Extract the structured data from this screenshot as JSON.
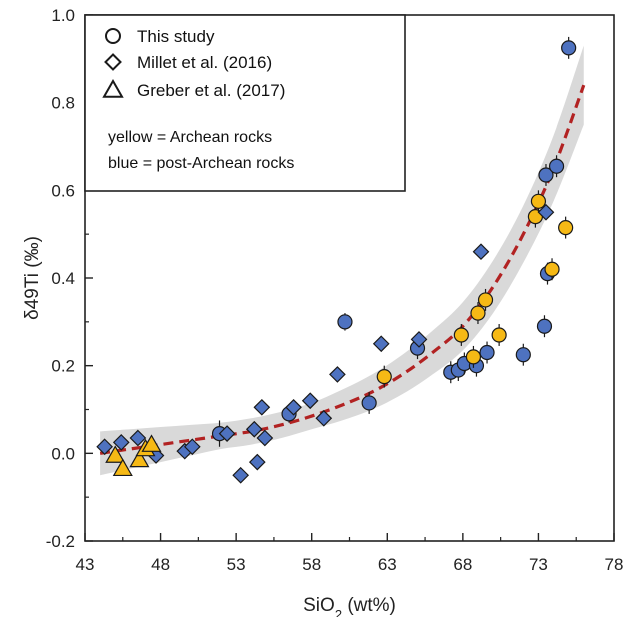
{
  "chart_data": {
    "type": "scatter",
    "xlabel_main": "SiO",
    "xlabel_sub": "2",
    "xlabel_rest": " (wt%)",
    "ylabel": "δ49Ti (‰)",
    "xlim": [
      43,
      78
    ],
    "ylim": [
      -0.2,
      1.0
    ],
    "x_ticks": [
      "43",
      "48",
      "53",
      "58",
      "63",
      "68",
      "73",
      "78"
    ],
    "y_ticks": [
      "-0.2",
      "0.0",
      "0.2",
      "0.4",
      "0.6",
      "0.8",
      "1.0"
    ],
    "legend": {
      "entries": [
        {
          "marker": "circle",
          "label": "This study"
        },
        {
          "marker": "diamond",
          "label": "Millet et al. (2016)"
        },
        {
          "marker": "triangle",
          "label": "Greber et al. (2017)"
        }
      ],
      "note_yellow": "yellow = Archean rocks",
      "note_blue": "blue = post-Archean rocks",
      "position": "top-left"
    },
    "colors": {
      "archean": "#f6b915",
      "post_archean": "#4e72c0",
      "trend": "#b22222",
      "band": "#d9d9d9"
    },
    "trend_curve": {
      "style": "dashed",
      "x": [
        44,
        46,
        48,
        50,
        52,
        54,
        56,
        58,
        60,
        62,
        64,
        66,
        68,
        70,
        72,
        74,
        76
      ],
      "y": [
        0.0,
        0.01,
        0.02,
        0.03,
        0.04,
        0.05,
        0.065,
        0.085,
        0.11,
        0.14,
        0.18,
        0.23,
        0.29,
        0.38,
        0.5,
        0.65,
        0.84
      ],
      "band_half_width": [
        0.05,
        0.045,
        0.04,
        0.035,
        0.03,
        0.03,
        0.03,
        0.03,
        0.035,
        0.04,
        0.045,
        0.05,
        0.055,
        0.06,
        0.065,
        0.075,
        0.09
      ]
    },
    "series": [
      {
        "marker": "circle",
        "color": "post_archean",
        "points": [
          {
            "x": 51.9,
            "y": 0.045,
            "err": 0.03
          },
          {
            "x": 56.5,
            "y": 0.09,
            "err": 0.02
          },
          {
            "x": 60.2,
            "y": 0.3,
            "err": 0.02
          },
          {
            "x": 61.8,
            "y": 0.115,
            "err": 0.025
          },
          {
            "x": 65.0,
            "y": 0.24,
            "err": 0.025
          },
          {
            "x": 67.2,
            "y": 0.185,
            "err": 0.025
          },
          {
            "x": 67.7,
            "y": 0.19,
            "err": 0.025
          },
          {
            "x": 68.1,
            "y": 0.205,
            "err": 0.025
          },
          {
            "x": 68.9,
            "y": 0.2,
            "err": 0.025
          },
          {
            "x": 69.6,
            "y": 0.23,
            "err": 0.025
          },
          {
            "x": 72.0,
            "y": 0.225,
            "err": 0.025
          },
          {
            "x": 73.4,
            "y": 0.29,
            "err": 0.025
          },
          {
            "x": 73.6,
            "y": 0.41,
            "err": 0.025
          },
          {
            "x": 73.5,
            "y": 0.635,
            "err": 0.025
          },
          {
            "x": 74.2,
            "y": 0.655,
            "err": 0.025
          },
          {
            "x": 75.0,
            "y": 0.925,
            "err": 0.025
          }
        ]
      },
      {
        "marker": "circle",
        "color": "archean",
        "points": [
          {
            "x": 62.8,
            "y": 0.175,
            "err": 0.025
          },
          {
            "x": 67.9,
            "y": 0.27,
            "err": 0.025
          },
          {
            "x": 68.7,
            "y": 0.22,
            "err": 0.025
          },
          {
            "x": 69.0,
            "y": 0.32,
            "err": 0.025
          },
          {
            "x": 69.5,
            "y": 0.35,
            "err": 0.025
          },
          {
            "x": 70.4,
            "y": 0.27,
            "err": 0.025
          },
          {
            "x": 72.8,
            "y": 0.54,
            "err": 0.025
          },
          {
            "x": 73.0,
            "y": 0.575,
            "err": 0.025
          },
          {
            "x": 73.9,
            "y": 0.42,
            "err": 0.025
          },
          {
            "x": 74.8,
            "y": 0.515,
            "err": 0.025
          }
        ]
      },
      {
        "marker": "diamond",
        "color": "post_archean",
        "points": [
          {
            "x": 44.3,
            "y": 0.015,
            "err": 0.015
          },
          {
            "x": 45.4,
            "y": 0.025,
            "err": 0.015
          },
          {
            "x": 46.5,
            "y": 0.035,
            "err": 0.015
          },
          {
            "x": 47.7,
            "y": -0.005,
            "err": 0.015
          },
          {
            "x": 49.6,
            "y": 0.005,
            "err": 0.015
          },
          {
            "x": 50.1,
            "y": 0.015,
            "err": 0.015
          },
          {
            "x": 52.4,
            "y": 0.045,
            "err": 0.015
          },
          {
            "x": 53.3,
            "y": -0.05,
            "err": 0.015
          },
          {
            "x": 54.2,
            "y": 0.055,
            "err": 0.015
          },
          {
            "x": 54.4,
            "y": -0.02,
            "err": 0.015
          },
          {
            "x": 54.7,
            "y": 0.105,
            "err": 0.015
          },
          {
            "x": 54.9,
            "y": 0.035,
            "err": 0.015
          },
          {
            "x": 56.8,
            "y": 0.105,
            "err": 0.015
          },
          {
            "x": 57.9,
            "y": 0.12,
            "err": 0.015
          },
          {
            "x": 58.8,
            "y": 0.08,
            "err": 0.015
          },
          {
            "x": 59.7,
            "y": 0.18,
            "err": 0.015
          },
          {
            "x": 62.6,
            "y": 0.25,
            "err": 0.015
          },
          {
            "x": 65.1,
            "y": 0.26,
            "err": 0.015
          },
          {
            "x": 69.2,
            "y": 0.46,
            "err": 0.015
          },
          {
            "x": 73.5,
            "y": 0.55,
            "err": 0.015
          }
        ]
      },
      {
        "marker": "triangle",
        "color": "archean",
        "points": [
          {
            "x": 45.0,
            "y": -0.005,
            "err": 0.012
          },
          {
            "x": 45.5,
            "y": -0.035,
            "err": 0.012
          },
          {
            "x": 46.6,
            "y": -0.015,
            "err": 0.012
          },
          {
            "x": 47.0,
            "y": 0.01,
            "err": 0.012
          },
          {
            "x": 47.4,
            "y": 0.02,
            "err": 0.012
          }
        ]
      }
    ]
  }
}
